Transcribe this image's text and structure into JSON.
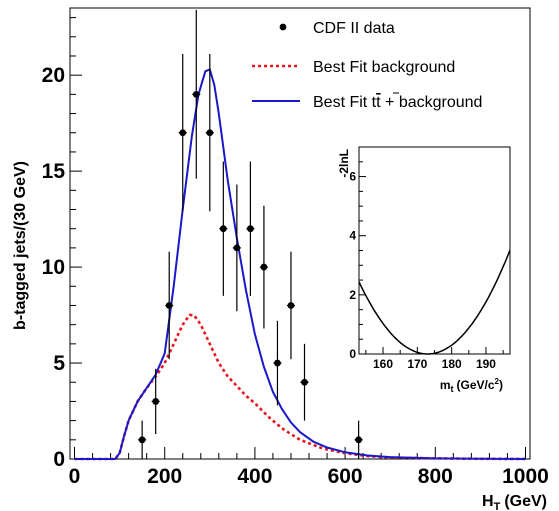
{
  "chart_data": [
    {
      "type": "scatter",
      "panel": "main",
      "xlabel": "H",
      "xlabel_sub": "T",
      "xlabel_unit": "(GeV)",
      "ylabel": "b-tagged jets/(30 GeV)",
      "xlim": [
        -10,
        1010
      ],
      "ylim": [
        0,
        23.5
      ],
      "xticks": [
        0,
        200,
        400,
        600,
        800,
        1000
      ],
      "yticks": [
        0,
        5,
        10,
        15,
        20
      ],
      "grid": false,
      "legend_position": "top-right",
      "legend": [
        {
          "label": "CDF II data",
          "marker": "dot",
          "color": "#000000"
        },
        {
          "label": "Best Fit background",
          "marker": "dashed-line",
          "color": "#e8141c"
        },
        {
          "label_prefix": "Best Fit t",
          "label_bar": "t",
          "label_suffix": " + background",
          "marker": "solid-line",
          "color": "#1a18c8"
        }
      ],
      "series": [
        {
          "name": "CDF II data",
          "kind": "points-with-errors",
          "color": "#000000",
          "x": [
            150,
            180,
            210,
            240,
            270,
            300,
            330,
            360,
            390,
            420,
            450,
            480,
            510,
            630
          ],
          "y": [
            1,
            3,
            8,
            17,
            19,
            17,
            12,
            11,
            12,
            10,
            5,
            8,
            4,
            1
          ],
          "yerr": [
            1.0,
            1.7,
            2.8,
            4.1,
            4.4,
            4.1,
            3.5,
            3.3,
            3.5,
            3.2,
            2.2,
            2.8,
            2.0,
            1.0
          ]
        },
        {
          "name": "Best Fit background",
          "kind": "line",
          "style": "dashed",
          "color": "#e8141c",
          "x": [
            0,
            90,
            100,
            110,
            120,
            140,
            160,
            180,
            200,
            220,
            240,
            255,
            265,
            280,
            300,
            320,
            340,
            360,
            380,
            400,
            430,
            460,
            500,
            550,
            600,
            650,
            700,
            800,
            900,
            1000
          ],
          "y": [
            0,
            0,
            0.3,
            1.2,
            2.0,
            3.0,
            3.7,
            4.3,
            5.0,
            6.0,
            7.0,
            7.5,
            7.5,
            7.0,
            6.0,
            5.0,
            4.3,
            3.8,
            3.3,
            2.9,
            2.2,
            1.6,
            1.0,
            0.55,
            0.3,
            0.15,
            0.08,
            0.03,
            0.01,
            0.0
          ]
        },
        {
          "name": "Best Fit tt + background",
          "kind": "line",
          "style": "solid",
          "color": "#1a18c8",
          "x": [
            0,
            90,
            100,
            110,
            120,
            140,
            160,
            180,
            200,
            220,
            240,
            260,
            275,
            290,
            300,
            310,
            320,
            340,
            360,
            380,
            400,
            420,
            440,
            460,
            480,
            500,
            530,
            560,
            600,
            650,
            700,
            800,
            900,
            1000
          ],
          "y": [
            0,
            0,
            0.3,
            1.2,
            2.0,
            3.0,
            3.7,
            4.4,
            5.5,
            9.0,
            13.0,
            16.8,
            19.0,
            20.2,
            20.3,
            19.5,
            18.0,
            14.5,
            11.5,
            8.8,
            6.5,
            4.8,
            3.5,
            2.6,
            1.9,
            1.4,
            0.9,
            0.6,
            0.35,
            0.18,
            0.1,
            0.03,
            0.01,
            0.0
          ]
        }
      ]
    },
    {
      "type": "line",
      "panel": "inset",
      "xlabel": "m",
      "xlabel_sub": "t",
      "xlabel_unit": "(GeV/c",
      "xlabel_sup": "2",
      "xlabel_close": ")",
      "ylabel": "-2lnL",
      "xlim": [
        153,
        197
      ],
      "ylim": [
        0,
        7
      ],
      "xticks": [
        160,
        170,
        180,
        190
      ],
      "yticks": [
        0,
        2,
        4,
        6
      ],
      "series": [
        {
          "name": "-2lnL",
          "color": "#000000",
          "min_x": 173,
          "curvature": 0.0061,
          "x_range": [
            153,
            197
          ]
        }
      ]
    }
  ]
}
